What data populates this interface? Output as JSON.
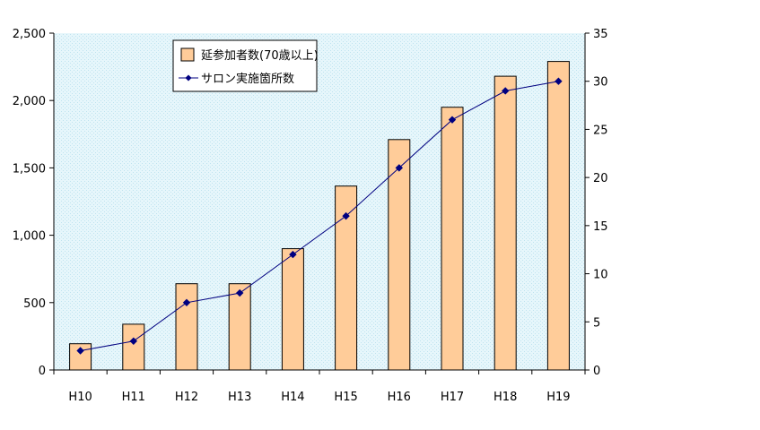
{
  "chart_data": {
    "type": "bar",
    "categories": [
      "H10",
      "H11",
      "H12",
      "H13",
      "H14",
      "H15",
      "H16",
      "H17",
      "H18",
      "H19"
    ],
    "series": [
      {
        "name": "延参加者数(70歳以上)",
        "type": "bar",
        "axis": "left",
        "values": [
          195,
          340,
          640,
          640,
          900,
          1365,
          1710,
          1950,
          2180,
          2290
        ]
      },
      {
        "name": "サロン実施箇所数",
        "type": "line",
        "axis": "right",
        "values": [
          2,
          3,
          7,
          8,
          12,
          16,
          21,
          26,
          29,
          30
        ]
      }
    ],
    "y_left": {
      "lim": [
        0,
        2500
      ],
      "ticks": [
        0,
        500,
        1000,
        1500,
        2000,
        2500
      ],
      "tick_labels": [
        "0",
        "500",
        "1,000",
        "1,500",
        "2,000",
        "2,500"
      ]
    },
    "y_right": {
      "lim": [
        0,
        35
      ],
      "ticks": [
        0,
        5,
        10,
        15,
        20,
        25,
        30,
        35
      ],
      "tick_labels": [
        "0",
        "5",
        "10",
        "15",
        "20",
        "25",
        "30",
        "35"
      ]
    },
    "legend_position": "top-left",
    "grid": false,
    "colors": {
      "plot_background": "#E6F6FB",
      "plot_pattern": "#BFE3EF",
      "bar_fill": "#FFCC99",
      "bar_stroke": "#000000",
      "line": "#000080",
      "marker": "#000080"
    }
  }
}
